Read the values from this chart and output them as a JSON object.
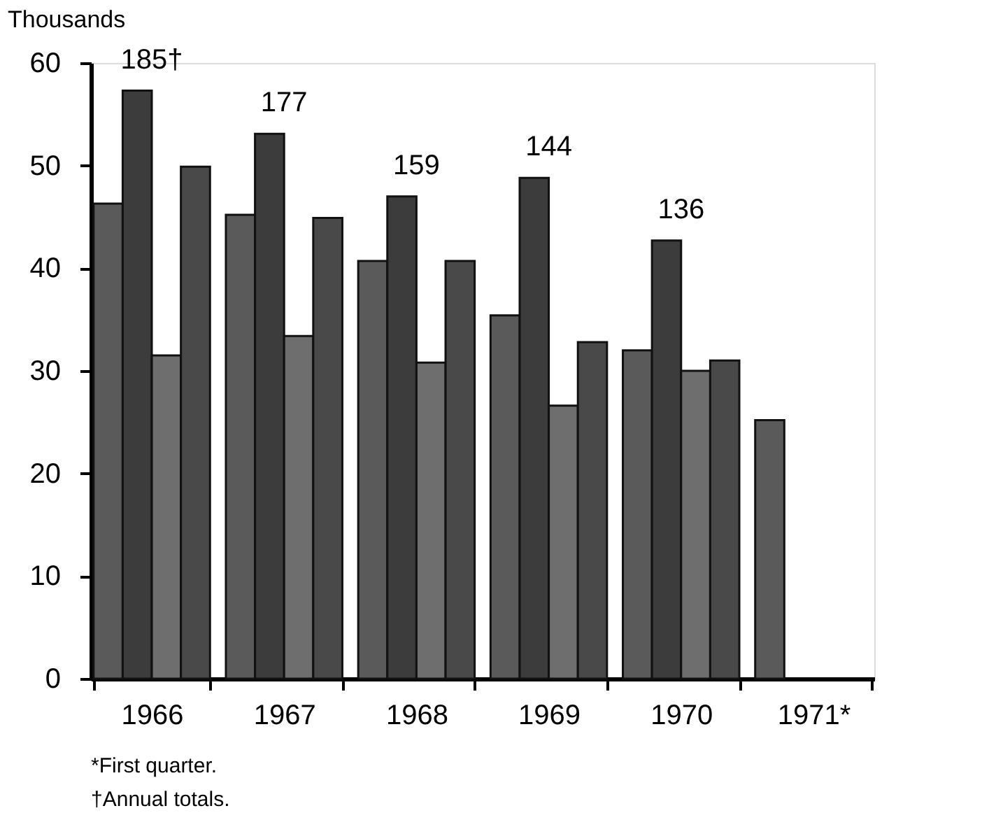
{
  "chart_data": {
    "type": "bar",
    "ylabel": "Thousands",
    "categories": [
      "1966",
      "1967",
      "1968",
      "1969",
      "1970",
      "1971*"
    ],
    "series": [
      {
        "color": "#5a5a5a",
        "values": [
          46.3,
          45.2,
          40.7,
          35.4,
          32.0,
          25.2
        ]
      },
      {
        "color": "#3c3c3c",
        "values": [
          57.3,
          53.1,
          47.0,
          48.8,
          42.7,
          null
        ]
      },
      {
        "color": "#6e6e6e",
        "values": [
          31.5,
          33.4,
          30.8,
          26.6,
          30.0,
          null
        ]
      },
      {
        "color": "#494949",
        "values": [
          49.9,
          44.9,
          40.7,
          32.8,
          31.0,
          null
        ]
      }
    ],
    "ylim": [
      0,
      60
    ],
    "yticks": [
      0,
      10,
      20,
      30,
      40,
      50,
      60
    ],
    "grid": false,
    "legend": false,
    "totals": [
      "185†",
      "177",
      "159",
      "144",
      "136",
      null
    ],
    "annotations": [
      "*First quarter.",
      "†Annual totals."
    ]
  }
}
